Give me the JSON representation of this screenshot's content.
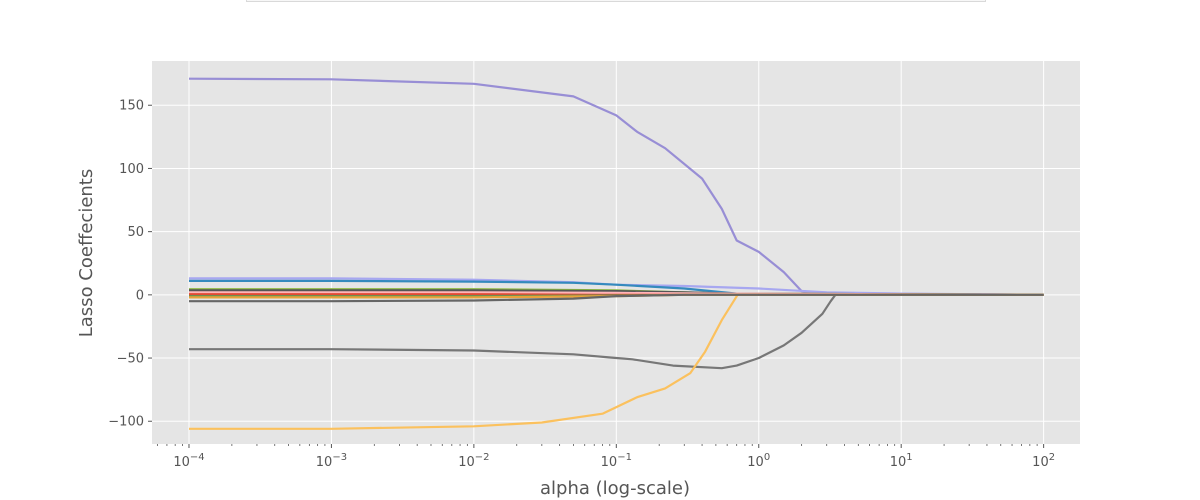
{
  "chart_data": {
    "type": "line",
    "title": "",
    "xlabel": "alpha (log-scale)",
    "ylabel": "Lasso Coeffecients",
    "x_scale": "log",
    "xlim": [
      5.5e-05,
      180
    ],
    "ylim": [
      -118,
      185
    ],
    "x_ticks": [
      {
        "value": 0.0001,
        "base": "10",
        "exp": "−4"
      },
      {
        "value": 0.001,
        "base": "10",
        "exp": "−3"
      },
      {
        "value": 0.01,
        "base": "10",
        "exp": "−2"
      },
      {
        "value": 0.1,
        "base": "10",
        "exp": "−1"
      },
      {
        "value": 1,
        "base": "10",
        "exp": "0"
      },
      {
        "value": 10,
        "base": "10",
        "exp": "1"
      },
      {
        "value": 100,
        "base": "10",
        "exp": "2"
      }
    ],
    "y_ticks": [
      {
        "value": 150,
        "label": "150"
      },
      {
        "value": 100,
        "label": "100"
      },
      {
        "value": 50,
        "label": "50"
      },
      {
        "value": 0,
        "label": "0"
      },
      {
        "value": -50,
        "label": "−50"
      },
      {
        "value": -100,
        "label": "−100"
      }
    ],
    "grid": true,
    "legend": "none",
    "colors": {
      "plot_background": "#e5e5e5",
      "grid": "#ffffff",
      "text": "#555555"
    },
    "series": [
      {
        "color": "#988ed5",
        "points": [
          [
            0.0001,
            171
          ],
          [
            0.001,
            170.5
          ],
          [
            0.01,
            167
          ],
          [
            0.05,
            157
          ],
          [
            0.1,
            142
          ],
          [
            0.14,
            129
          ],
          [
            0.22,
            116
          ],
          [
            0.4,
            92
          ],
          [
            0.55,
            68
          ],
          [
            0.7,
            43
          ],
          [
            1.0,
            34
          ],
          [
            1.5,
            18
          ],
          [
            2.0,
            3
          ],
          [
            3.0,
            1
          ],
          [
            100,
            0
          ]
        ]
      },
      {
        "color": "#777777",
        "points": [
          [
            0.0001,
            -43
          ],
          [
            0.001,
            -43
          ],
          [
            0.01,
            -44
          ],
          [
            0.05,
            -47
          ],
          [
            0.1,
            -50
          ],
          [
            0.13,
            -51
          ],
          [
            0.25,
            -56
          ],
          [
            0.55,
            -58
          ],
          [
            0.7,
            -56
          ],
          [
            1.0,
            -50
          ],
          [
            1.5,
            -40
          ],
          [
            2.0,
            -30
          ],
          [
            2.8,
            -15
          ],
          [
            3.2,
            -5
          ],
          [
            3.5,
            1
          ],
          [
            100,
            0
          ]
        ]
      },
      {
        "color": "#fbc15e",
        "points": [
          [
            0.0001,
            -106
          ],
          [
            0.001,
            -106
          ],
          [
            0.01,
            -104
          ],
          [
            0.03,
            -101
          ],
          [
            0.08,
            -94
          ],
          [
            0.14,
            -81
          ],
          [
            0.22,
            -74
          ],
          [
            0.33,
            -62
          ],
          [
            0.42,
            -45
          ],
          [
            0.55,
            -20
          ],
          [
            0.72,
            1
          ],
          [
            5,
            1
          ],
          [
            20,
            0
          ],
          [
            100,
            0
          ]
        ]
      },
      {
        "color": "#a7a7f0",
        "points": [
          [
            0.0001,
            13
          ],
          [
            0.001,
            13
          ],
          [
            0.01,
            12
          ],
          [
            0.05,
            10
          ],
          [
            0.1,
            8
          ],
          [
            0.3,
            7
          ],
          [
            1.0,
            5
          ],
          [
            3.0,
            2
          ],
          [
            10,
            1
          ],
          [
            100,
            0
          ]
        ]
      },
      {
        "color": "#348abd",
        "points": [
          [
            0.0001,
            11
          ],
          [
            0.001,
            11
          ],
          [
            0.01,
            10.5
          ],
          [
            0.05,
            9.5
          ],
          [
            0.1,
            8
          ],
          [
            0.3,
            5
          ],
          [
            0.7,
            1
          ],
          [
            100,
            0
          ]
        ]
      },
      {
        "color": "#8eba42",
        "points": [
          [
            0.0001,
            4.5
          ],
          [
            0.01,
            4.5
          ],
          [
            0.1,
            3.5
          ],
          [
            0.3,
            2
          ],
          [
            0.6,
            1
          ],
          [
            100,
            0
          ]
        ]
      },
      {
        "color": "#555555",
        "points": [
          [
            0.0001,
            3.5
          ],
          [
            0.01,
            3.5
          ],
          [
            0.1,
            3
          ],
          [
            0.3,
            2
          ],
          [
            0.7,
            1
          ],
          [
            100,
            0
          ]
        ]
      },
      {
        "color": "#ffb5b8",
        "points": [
          [
            0.0001,
            2
          ],
          [
            0.01,
            2
          ],
          [
            0.1,
            1.5
          ],
          [
            0.5,
            1
          ],
          [
            100,
            0
          ]
        ]
      },
      {
        "color": "#e24a33",
        "points": [
          [
            0.0001,
            0.5
          ],
          [
            0.01,
            0.5
          ],
          [
            0.08,
            0
          ],
          [
            100,
            0
          ]
        ]
      },
      {
        "color": "#6d904f",
        "points": [
          [
            0.0001,
            -1
          ],
          [
            0.01,
            -1
          ],
          [
            0.1,
            -0.5
          ],
          [
            0.3,
            0
          ],
          [
            100,
            0
          ]
        ]
      },
      {
        "color": "#e8a33a",
        "points": [
          [
            0.0001,
            -2
          ],
          [
            0.01,
            -2
          ],
          [
            0.1,
            -1
          ],
          [
            0.3,
            0
          ],
          [
            100,
            0
          ]
        ]
      },
      {
        "color": "#666666",
        "points": [
          [
            0.0001,
            -5
          ],
          [
            0.001,
            -5
          ],
          [
            0.01,
            -4.5
          ],
          [
            0.05,
            -3
          ],
          [
            0.1,
            -1
          ],
          [
            0.3,
            0
          ],
          [
            100,
            0
          ]
        ]
      }
    ]
  }
}
